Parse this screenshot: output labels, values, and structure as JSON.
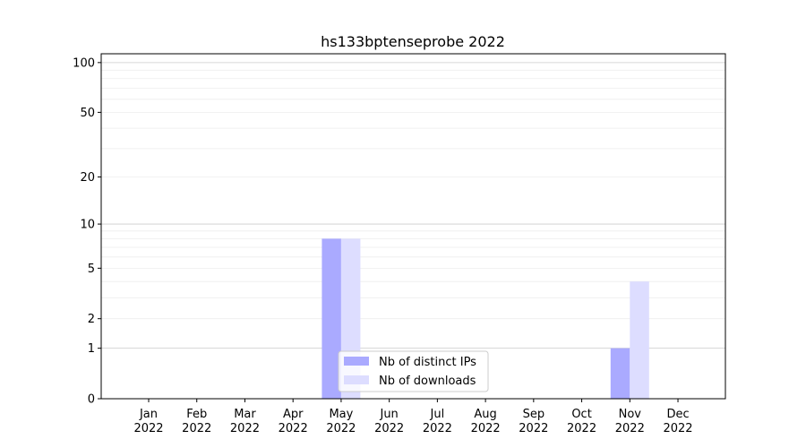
{
  "chart_data": {
    "type": "bar",
    "title": "hs133bptenseprobe 2022",
    "xlabel": "",
    "ylabel": "",
    "yscale": "symlog (log10(1+y))",
    "ylim": [
      0,
      113
    ],
    "yticks": [
      0,
      1,
      2,
      5,
      10,
      20,
      50,
      100
    ],
    "grid": true,
    "legend_position": "bottom-center",
    "categories": [
      "Jan\n2022",
      "Feb\n2022",
      "Mar\n2022",
      "Apr\n2022",
      "May\n2022",
      "Jun\n2022",
      "Jul\n2022",
      "Aug\n2022",
      "Sep\n2022",
      "Oct\n2022",
      "Nov\n2022",
      "Dec\n2022"
    ],
    "series": [
      {
        "name": "Nb of distinct IPs",
        "color": "#aaaaff",
        "values": [
          0,
          0,
          0,
          0,
          8,
          0,
          0,
          0,
          0,
          0,
          1,
          0
        ]
      },
      {
        "name": "Nb of downloads",
        "color": "#ddddff",
        "values": [
          0,
          0,
          0,
          0,
          8,
          0,
          0,
          0,
          0,
          0,
          4,
          0
        ]
      }
    ]
  }
}
